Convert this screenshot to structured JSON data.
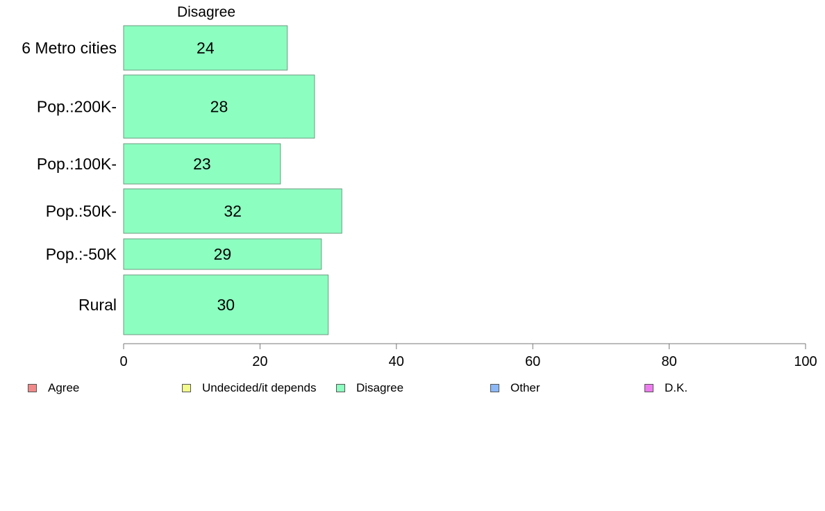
{
  "chart_data": {
    "type": "bar",
    "orientation": "horizontal",
    "title": "Disagree",
    "categories": [
      "6 Metro cities",
      "Pop.:200K-",
      "Pop.:100K-",
      "Pop.:50K-",
      "Pop.:-50K",
      "Rural"
    ],
    "values": [
      24,
      28,
      23,
      32,
      29,
      30
    ],
    "xlim": [
      0,
      100
    ],
    "xticks": [
      0,
      20,
      40,
      60,
      80,
      100
    ],
    "bar_color": "#8cffc0",
    "grid": false,
    "legend_position": "bottom"
  },
  "legend": {
    "items": [
      {
        "label": "Agree",
        "color": "#f08a8a"
      },
      {
        "label": "Undecided/it depends",
        "color": "#f2fb8c"
      },
      {
        "label": "Disagree",
        "color": "#8cffc0"
      },
      {
        "label": "Other",
        "color": "#8cb8f8"
      },
      {
        "label": "D.K.",
        "color": "#ee7cf0"
      }
    ]
  }
}
